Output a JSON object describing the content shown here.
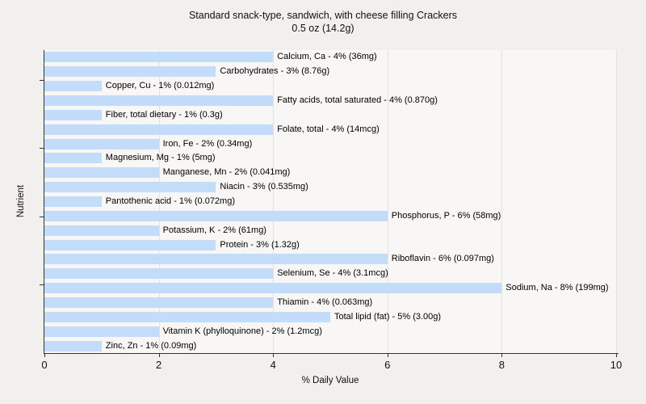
{
  "title": {
    "line1": "Standard snack-type, sandwich, with cheese filling Crackers",
    "line2": "0.5 oz (14.2g)"
  },
  "chart_data": {
    "type": "bar",
    "orientation": "horizontal",
    "title": "Standard snack-type, sandwich, with cheese filling Crackers 0.5 oz (14.2g)",
    "xlabel": "% Daily Value",
    "ylabel": "Nutrient",
    "xlim": [
      0,
      10
    ],
    "xticks": [
      0,
      2,
      4,
      6,
      8,
      10
    ],
    "grid": true,
    "legend_position": "none",
    "colors": {
      "bar_fill": "#c3dcfa",
      "plot_background": "#f8f7f5",
      "page_background": "#f1f0ee",
      "grid_line": "#e3e2df",
      "axis_line": "#333333",
      "text": "#000000"
    },
    "categories": [
      "Calcium, Ca",
      "Carbohydrates",
      "Copper, Cu",
      "Fatty acids, total saturated",
      "Fiber, total dietary",
      "Folate, total",
      "Iron, Fe",
      "Magnesium, Mg",
      "Manganese, Mn",
      "Niacin",
      "Pantothenic acid",
      "Phosphorus, P",
      "Potassium, K",
      "Protein",
      "Riboflavin",
      "Selenium, Se",
      "Sodium, Na",
      "Thiamin",
      "Total lipid (fat)",
      "Vitamin K (phylloquinone)",
      "Zinc, Zn"
    ],
    "values": [
      4,
      3,
      1,
      4,
      1,
      4,
      2,
      1,
      2,
      3,
      1,
      6,
      2,
      3,
      6,
      4,
      8,
      4,
      5,
      2,
      1
    ],
    "amounts": [
      "36mg",
      "8.76g",
      "0.012mg",
      "0.870g",
      "0.3g",
      "14mcg",
      "0.34mg",
      "5mg",
      "0.041mg",
      "0.535mg",
      "0.072mg",
      "58mg",
      "61mg",
      "1.32g",
      "0.097mg",
      "3.1mcg",
      "199mg",
      "0.063mg",
      "3.00g",
      "1.2mcg",
      "0.09mg"
    ],
    "labels": [
      "Calcium, Ca - 4% (36mg)",
      "Carbohydrates - 3% (8.76g)",
      "Copper, Cu - 1% (0.012mg)",
      "Fatty acids, total saturated - 4% (0.870g)",
      "Fiber, total dietary - 1% (0.3g)",
      "Folate, total - 4% (14mcg)",
      "Iron, Fe - 2% (0.34mg)",
      "Magnesium, Mg - 1% (5mg)",
      "Manganese, Mn - 2% (0.041mg)",
      "Niacin - 3% (0.535mg)",
      "Pantothenic acid - 1% (0.072mg)",
      "Phosphorus, P - 6% (58mg)",
      "Potassium, K - 2% (61mg)",
      "Protein - 3% (1.32g)",
      "Riboflavin - 6% (0.097mg)",
      "Selenium, Se - 4% (3.1mcg)",
      "Sodium, Na - 8% (199mg)",
      "Thiamin - 4% (0.063mg)",
      "Total lipid (fat) - 5% (3.00g)",
      "Vitamin K (phylloquinone) - 2% (1.2mcg)",
      "Zinc, Zn - 1% (0.09mg)"
    ]
  }
}
